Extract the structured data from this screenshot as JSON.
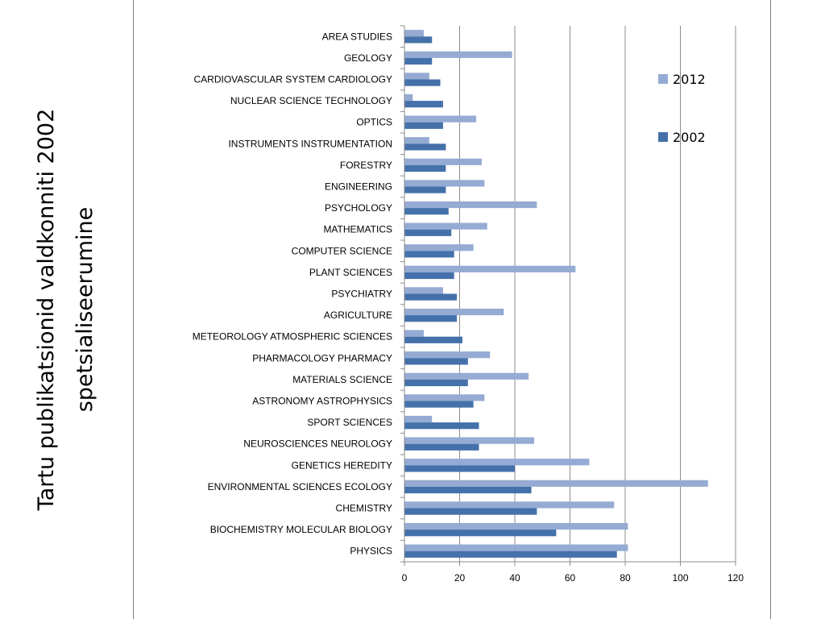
{
  "slide": {
    "title_line1": "Tartu  publikatsionid valdkonniti 2002",
    "title_line2": "spetsialiseerumine"
  },
  "chart_data": {
    "type": "bar",
    "orientation": "horizontal",
    "title": "",
    "xlabel": "",
    "ylabel": "",
    "xlim": [
      0,
      120
    ],
    "xticks": [
      0,
      20,
      40,
      60,
      80,
      100,
      120
    ],
    "grid": true,
    "legend_position": "right",
    "categories": [
      "AREA STUDIES",
      "GEOLOGY",
      "CARDIOVASCULAR SYSTEM CARDIOLOGY",
      "NUCLEAR SCIENCE TECHNOLOGY",
      "OPTICS",
      "INSTRUMENTS INSTRUMENTATION",
      "FORESTRY",
      "ENGINEERING",
      "PSYCHOLOGY",
      "MATHEMATICS",
      "COMPUTER SCIENCE",
      "PLANT SCIENCES",
      "PSYCHIATRY",
      "AGRICULTURE",
      "METEOROLOGY ATMOSPHERIC SCIENCES",
      "PHARMACOLOGY PHARMACY",
      "MATERIALS SCIENCE",
      "ASTRONOMY ASTROPHYSICS",
      "SPORT SCIENCES",
      "NEUROSCIENCES NEUROLOGY",
      "GENETICS HEREDITY",
      "ENVIRONMENTAL SCIENCES ECOLOGY",
      "CHEMISTRY",
      "BIOCHEMISTRY MOLECULAR BIOLOGY",
      "PHYSICS"
    ],
    "series": [
      {
        "name": "2012",
        "color": "#95abd3",
        "values": [
          7,
          39,
          9,
          3,
          26,
          9,
          28,
          29,
          48,
          30,
          25,
          62,
          14,
          36,
          7,
          31,
          45,
          29,
          10,
          47,
          67,
          110,
          76,
          81,
          81
        ]
      },
      {
        "name": "2002",
        "color": "#4571aa",
        "values": [
          10,
          10,
          13,
          14,
          14,
          15,
          15,
          15,
          16,
          17,
          18,
          18,
          19,
          19,
          21,
          23,
          23,
          25,
          27,
          27,
          40,
          46,
          48,
          55,
          77
        ]
      }
    ],
    "colors": {
      "gridline": "#8c8c8c",
      "axis": "#8c8c8c",
      "frame": "#7f7f7f"
    }
  }
}
